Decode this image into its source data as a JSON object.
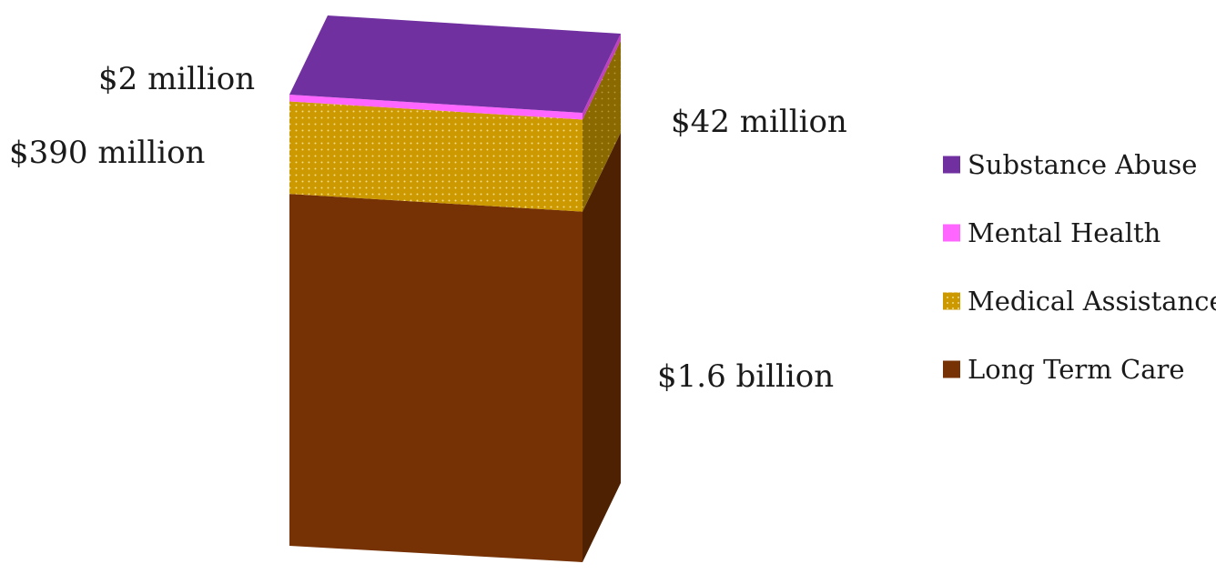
{
  "chart_data": {
    "type": "bar",
    "stacked": true,
    "three_d": true,
    "title": "",
    "xlabel": "",
    "ylabel": "",
    "series": [
      {
        "name": "Long Term Care",
        "value": 1600,
        "label": "$1.6 billion",
        "color": "#763205",
        "side_color": "#4e2103",
        "pattern": "none"
      },
      {
        "name": "Medical Assistance",
        "value": 390,
        "label": "$390 million",
        "color": "#cc9900",
        "side_color": "#8a6a00",
        "pattern": "dots"
      },
      {
        "name": "Mental Health",
        "value": 42,
        "label": "$42 million",
        "color": "#ff66ff",
        "side_color": "#c040c0",
        "pattern": "none"
      },
      {
        "name": "Substance Abuse",
        "value": 2,
        "label": "$2 million",
        "color": "#7030a0",
        "side_color": "#6a2d8f",
        "pattern": "none"
      }
    ],
    "units": "millions of dollars",
    "legend_position": "right",
    "legend_order": [
      "Substance Abuse",
      "Mental Health",
      "Medical Assistance",
      "Long Term Care"
    ]
  }
}
